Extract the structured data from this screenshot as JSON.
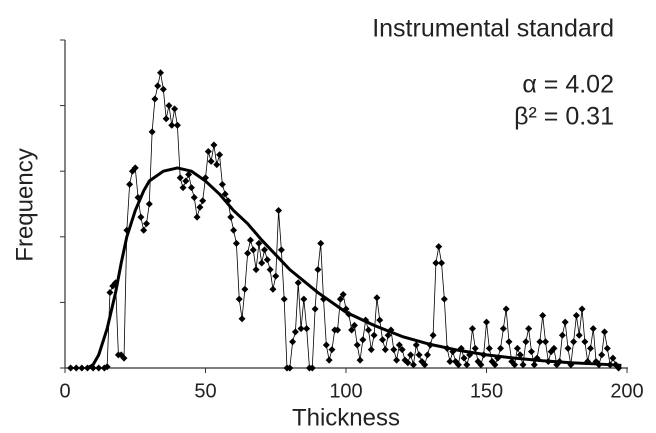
{
  "chart_data": {
    "type": "line",
    "annotations": [
      "Instrumental standard",
      "α = 4.02",
      "β² = 0.31"
    ],
    "x_label": "Thickness",
    "y_label": "Frequency",
    "xlim": [
      0,
      200
    ],
    "xticks": [
      0,
      50,
      100,
      150,
      200
    ],
    "ylim": [
      0,
      5
    ],
    "yticks": [
      0,
      1,
      2,
      3,
      4,
      5
    ],
    "series": [
      {
        "color": "#000000",
        "marker": "diamond",
        "x": [
          2,
          4,
          6,
          8,
          10,
          12,
          14,
          15,
          16,
          17,
          18,
          19,
          20,
          21,
          22,
          23,
          24,
          25,
          26,
          27,
          28,
          29,
          30,
          31,
          32,
          33,
          34,
          35,
          36,
          37,
          38,
          39,
          40,
          41,
          42,
          43,
          44,
          45,
          46,
          47,
          48,
          49,
          50,
          51,
          52,
          53,
          54,
          55,
          56,
          57,
          58,
          59,
          60,
          61,
          62,
          63,
          64,
          65,
          66,
          67,
          68,
          69,
          70,
          71,
          72,
          73,
          74,
          75,
          76,
          77,
          78,
          79,
          80,
          81,
          82,
          83,
          84,
          85,
          86,
          87,
          88,
          89,
          90,
          91,
          92,
          93,
          94,
          95,
          96,
          97,
          98,
          99,
          100,
          101,
          102,
          103,
          104,
          105,
          106,
          107,
          108,
          109,
          110,
          111,
          112,
          113,
          114,
          115,
          116,
          117,
          118,
          119,
          120,
          121,
          122,
          123,
          124,
          125,
          126,
          127,
          128,
          129,
          130,
          131,
          132,
          133,
          134,
          135,
          136,
          137,
          138,
          139,
          140,
          141,
          142,
          143,
          144,
          145,
          146,
          147,
          148,
          149,
          150,
          151,
          152,
          153,
          154,
          155,
          156,
          157,
          158,
          159,
          160,
          161,
          162,
          163,
          164,
          165,
          166,
          167,
          168,
          169,
          170,
          171,
          172,
          173,
          174,
          175,
          176,
          177,
          178,
          179,
          180,
          181,
          182,
          183,
          184,
          185,
          186,
          187,
          188,
          189,
          190,
          191,
          192,
          193,
          194,
          195,
          196,
          197
        ],
        "values": [
          0,
          0,
          0,
          0,
          0,
          0,
          0,
          0.02,
          1.15,
          1.25,
          1.3,
          0.2,
          0.2,
          0.15,
          2.1,
          2.8,
          3.0,
          3.05,
          2.6,
          2.3,
          2.1,
          2.2,
          2.5,
          3.6,
          4.1,
          4.3,
          4.5,
          4.25,
          3.8,
          4.0,
          3.7,
          3.95,
          3.7,
          2.9,
          2.75,
          2.85,
          2.95,
          2.75,
          2.6,
          2.3,
          2.45,
          2.55,
          2.9,
          3.3,
          3.15,
          3.4,
          3.1,
          3.25,
          2.8,
          2.65,
          2.55,
          2.3,
          2.1,
          1.9,
          1.05,
          0.75,
          1.2,
          1.75,
          1.95,
          1.8,
          1.5,
          1.9,
          1.6,
          1.8,
          1.65,
          1.5,
          1.2,
          1.4,
          2.4,
          1.8,
          1.05,
          0,
          0,
          0.4,
          0.55,
          1.3,
          0.6,
          1.05,
          0.6,
          0,
          0,
          0.9,
          1.5,
          1.9,
          1.05,
          0.35,
          0.12,
          0.28,
          0.58,
          0.58,
          1.05,
          1.12,
          0.9,
          0.82,
          0.58,
          0.65,
          0.35,
          0.12,
          0.43,
          0.73,
          0.58,
          0.28,
          0.5,
          1.07,
          0.73,
          0.43,
          0.28,
          0.5,
          0.58,
          0.28,
          0.12,
          0.35,
          0.28,
          0.12,
          0.08,
          0.2,
          0.05,
          0.35,
          0.2,
          0.1,
          0.05,
          0.2,
          0.35,
          0.5,
          1.6,
          1.85,
          1.6,
          1.05,
          0.3,
          0.1,
          0.25,
          0.1,
          0.05,
          0.3,
          0.15,
          0.05,
          0.2,
          0.6,
          0.3,
          0.1,
          0.05,
          0.2,
          0.7,
          0.3,
          0.1,
          0.05,
          0.15,
          0.3,
          0.6,
          0.9,
          0.4,
          0.1,
          0.05,
          0.3,
          0.2,
          0.05,
          0.4,
          0.6,
          0.25,
          0.05,
          0.15,
          0.4,
          0.8,
          0.4,
          0.1,
          0.25,
          0.3,
          0.05,
          0.1,
          0.5,
          0.7,
          0.3,
          0.05,
          0.4,
          0.8,
          0.5,
          0.9,
          0.4,
          0.1,
          0.3,
          0.6,
          0.1,
          0.05,
          0.2,
          0.55,
          0.3,
          0.05,
          0.15,
          0.05,
          0
        ]
      },
      {
        "color": "#000000",
        "x": [
          8,
          10,
          12,
          15,
          18,
          20,
          22,
          25,
          28,
          30,
          35,
          40,
          45,
          50,
          55,
          60,
          65,
          70,
          80,
          90,
          100,
          110,
          120,
          130,
          140,
          150,
          160,
          170,
          180,
          190,
          198
        ],
        "values": [
          0,
          0.05,
          0.2,
          0.6,
          1.15,
          1.6,
          2.0,
          2.4,
          2.7,
          2.85,
          3.0,
          3.05,
          3.0,
          2.85,
          2.65,
          2.4,
          2.2,
          1.95,
          1.5,
          1.15,
          0.85,
          0.65,
          0.48,
          0.36,
          0.27,
          0.2,
          0.15,
          0.11,
          0.08,
          0.06,
          0.04
        ]
      }
    ]
  }
}
